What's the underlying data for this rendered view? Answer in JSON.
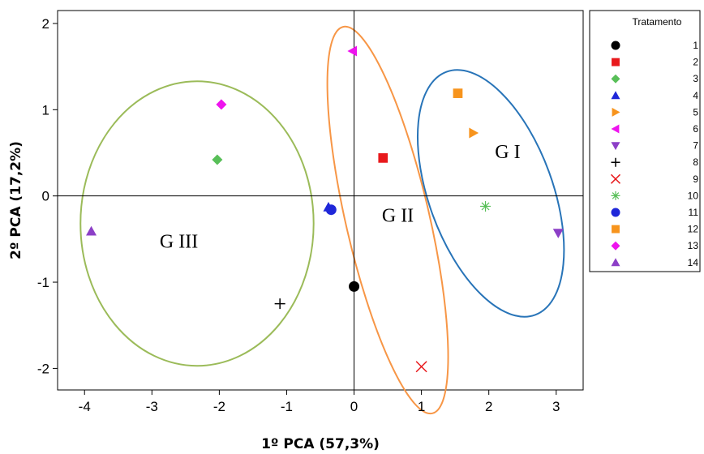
{
  "chart_data": {
    "type": "scatter",
    "title": "",
    "xlabel": "1º PCA (57,3%)",
    "ylabel": "2º PCA (17,2%)",
    "xlim": [
      -4.4,
      3.4
    ],
    "ylim": [
      -2.25,
      2.15
    ],
    "xticks": [
      -4,
      -3,
      -2,
      -1,
      0,
      1,
      2,
      3
    ],
    "yticks": [
      -2,
      -1,
      0,
      1,
      2
    ],
    "grid": false,
    "reference_lines": {
      "x": 0,
      "y": 0
    },
    "legend": {
      "title": "Tratamento",
      "placement": "right",
      "entries": [
        "1",
        "2",
        "3",
        "4",
        "5",
        "6",
        "7",
        "8",
        "9",
        "10",
        "11",
        "12",
        "13",
        "14"
      ]
    },
    "series": [
      {
        "name": "1",
        "marker": "circle",
        "color": "#000000",
        "x": [
          0.0
        ],
        "y": [
          -1.05
        ]
      },
      {
        "name": "2",
        "marker": "square",
        "color": "#e8191c",
        "x": [
          0.43
        ],
        "y": [
          0.44
        ]
      },
      {
        "name": "3",
        "marker": "diamond",
        "color": "#58bf58",
        "x": [
          -2.03
        ],
        "y": [
          0.42
        ]
      },
      {
        "name": "4",
        "marker": "triangle-up",
        "color": "#1f27d9",
        "x": [
          -0.38
        ],
        "y": [
          -0.13
        ]
      },
      {
        "name": "5",
        "marker": "triangle-right",
        "color": "#f7941d",
        "x": [
          1.77
        ],
        "y": [
          0.73
        ]
      },
      {
        "name": "6",
        "marker": "triangle-left",
        "color": "#ee14ee",
        "x": [
          -0.02
        ],
        "y": [
          1.68
        ]
      },
      {
        "name": "7",
        "marker": "triangle-down",
        "color": "#8c3fc7",
        "x": [
          3.03
        ],
        "y": [
          -0.43
        ]
      },
      {
        "name": "8",
        "marker": "plus",
        "color": "#000000",
        "x": [
          -1.1
        ],
        "y": [
          -1.25
        ]
      },
      {
        "name": "9",
        "marker": "x",
        "color": "#e8191c",
        "x": [
          1.0
        ],
        "y": [
          -1.98
        ]
      },
      {
        "name": "10",
        "marker": "asterisk",
        "color": "#58bf58",
        "x": [
          1.95
        ],
        "y": [
          -0.12
        ]
      },
      {
        "name": "11",
        "marker": "circle",
        "color": "#1f27d9",
        "x": [
          -0.34
        ],
        "y": [
          -0.16
        ]
      },
      {
        "name": "12",
        "marker": "square",
        "color": "#f7941d",
        "x": [
          1.54
        ],
        "y": [
          1.19
        ]
      },
      {
        "name": "13",
        "marker": "diamond",
        "color": "#ee14ee",
        "x": [
          -1.97
        ],
        "y": [
          1.06
        ]
      },
      {
        "name": "14",
        "marker": "triangle-up",
        "color": "#8c3fc7",
        "x": [
          -3.9
        ],
        "y": [
          -0.41
        ]
      }
    ],
    "groups": [
      {
        "label": "G I",
        "color": "#2874b8",
        "label_pos": [
          2.28,
          0.44
        ],
        "ellipse": {
          "cx": 2.03,
          "cy": 0.03,
          "rx": 0.92,
          "ry": 1.5,
          "rotation_deg": -20
        }
      },
      {
        "label": "G II",
        "color": "#f79646",
        "label_pos": [
          0.65,
          -0.3
        ],
        "ellipse": {
          "cx": 0.5,
          "cy": -0.28,
          "rx": 0.62,
          "ry": 2.3,
          "rotation_deg": -13
        }
      },
      {
        "label": "G III",
        "color": "#9bbb59",
        "label_pos": [
          -2.6,
          -0.6
        ],
        "ellipse": {
          "cx": -2.33,
          "cy": -0.32,
          "rx": 1.73,
          "ry": 1.65,
          "rotation_deg": 0
        }
      }
    ]
  }
}
